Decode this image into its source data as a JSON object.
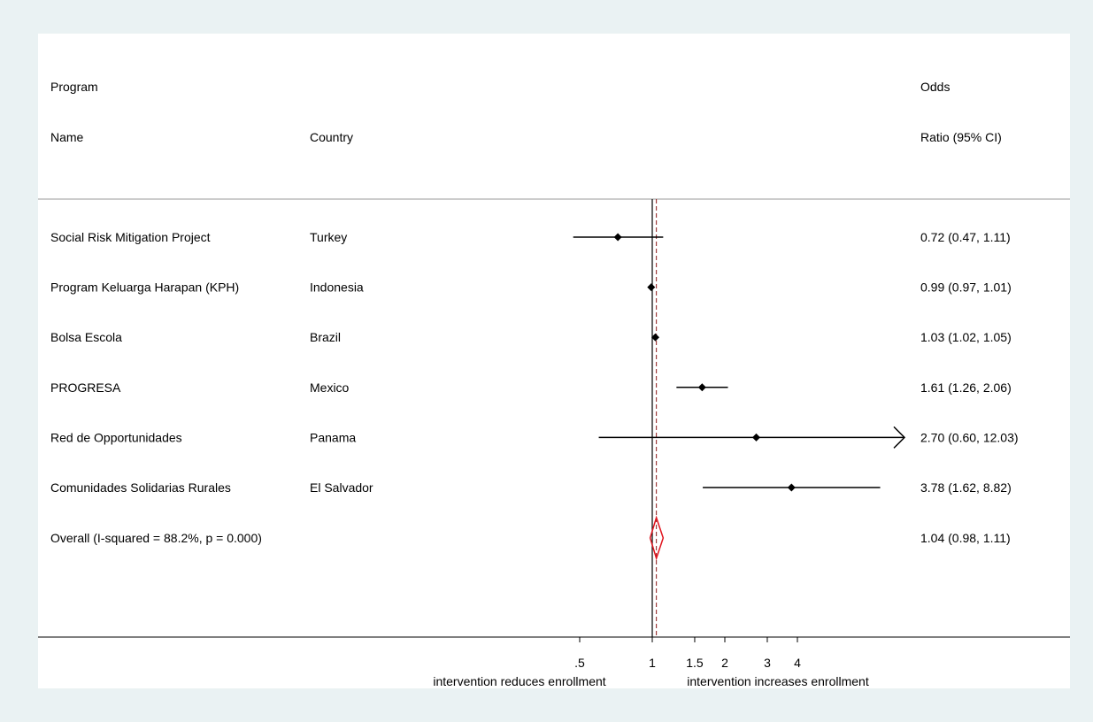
{
  "headers": {
    "program_line1": "Program",
    "program_line2": "Name",
    "country": "Country",
    "or_line1": "Odds",
    "or_line2": "Ratio (95% CI)"
  },
  "axis": {
    "ticks": [
      ".5",
      "1",
      "1.5",
      "2",
      "3",
      "4"
    ],
    "left_note": "intervention reduces enrollment",
    "right_note": "intervention increases enrollment"
  },
  "colors": {
    "background": "#eaf2f3",
    "point": "#000000",
    "overall_diamond": "#e0141e",
    "overall_line": "#8b1a1a"
  },
  "chart_data": {
    "type": "forest",
    "x_scale": "log",
    "xlim": [
      0.5,
      4
    ],
    "null_line": 1,
    "overall_line": 1.04,
    "rows": [
      {
        "program": "Social Risk Mitigation Project",
        "country": "Turkey",
        "or": 0.72,
        "lo": 0.47,
        "hi": 1.11,
        "label": "0.72 (0.47, 1.11)"
      },
      {
        "program": "Program Keluarga Harapan (KPH)",
        "country": "Indonesia",
        "or": 0.99,
        "lo": 0.97,
        "hi": 1.01,
        "label": "0.99 (0.97, 1.01)"
      },
      {
        "program": "Bolsa Escola",
        "country": "Brazil",
        "or": 1.03,
        "lo": 1.02,
        "hi": 1.05,
        "label": "1.03 (1.02, 1.05)"
      },
      {
        "program": "PROGRESA",
        "country": "Mexico",
        "or": 1.61,
        "lo": 1.26,
        "hi": 2.06,
        "label": "1.61 (1.26, 2.06)"
      },
      {
        "program": "Red de Opportunidades",
        "country": "Panama",
        "or": 2.7,
        "lo": 0.6,
        "hi": 12.03,
        "label": "2.70 (0.60, 12.03)",
        "hi_truncated": true
      },
      {
        "program": "Comunidades Solidarias Rurales",
        "country": "El Salvador",
        "or": 3.78,
        "lo": 1.62,
        "hi": 8.82,
        "label": "3.78 (1.62, 8.82)"
      }
    ],
    "overall": {
      "label_text": "Overall  (I-squared = 88.2%, p = 0.000)",
      "or": 1.04,
      "lo": 0.98,
      "hi": 1.11,
      "label": "1.04 (0.98, 1.11)"
    }
  }
}
